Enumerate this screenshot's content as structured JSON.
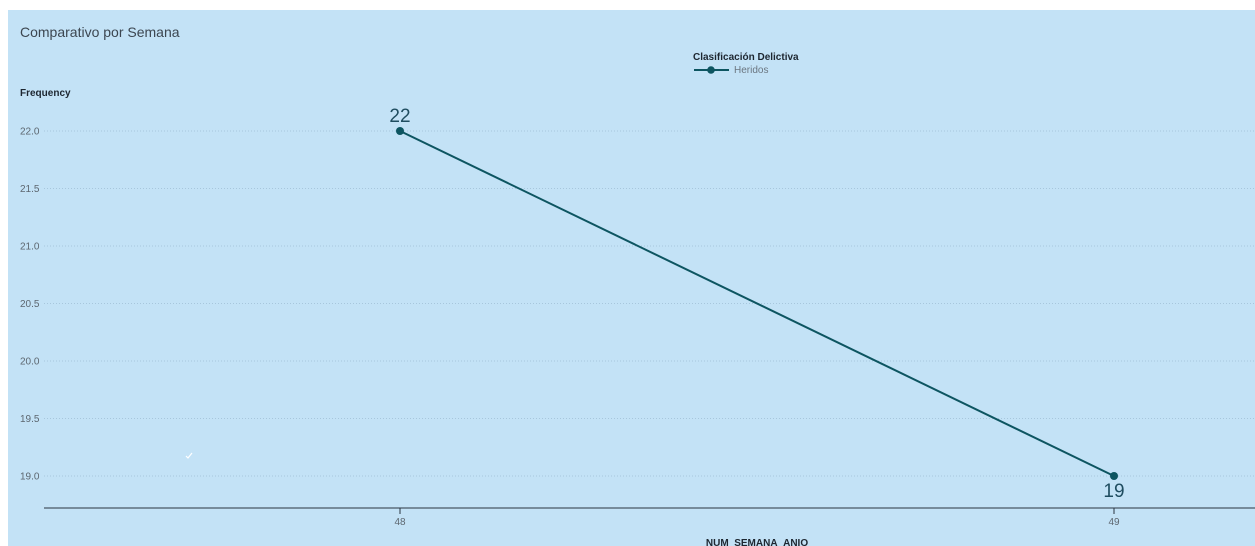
{
  "chart_data": {
    "type": "line",
    "title": "Comparativo por Semana",
    "xlabel": "NUM_SEMANA_ANIO",
    "ylabel": "Frequency",
    "categories": [
      "48",
      "49"
    ],
    "series": [
      {
        "name": "Heridos",
        "values": [
          22,
          19
        ],
        "color": "#0d5561"
      }
    ],
    "data_labels": [
      "22",
      "19"
    ],
    "legend_title": "Clasificación Delictiva",
    "legend_position": "top-center",
    "y_ticks": [
      "22.0",
      "21.5",
      "21.0",
      "20.5",
      "20.0",
      "19.5",
      "19.0"
    ],
    "y_tick_values": [
      22,
      21.5,
      21,
      20.5,
      20,
      19.5,
      19
    ],
    "ylim": [
      18.85,
      22.4
    ],
    "grid": true,
    "colors": {
      "background": "#c3e2f6",
      "line": "#0d5561"
    }
  }
}
